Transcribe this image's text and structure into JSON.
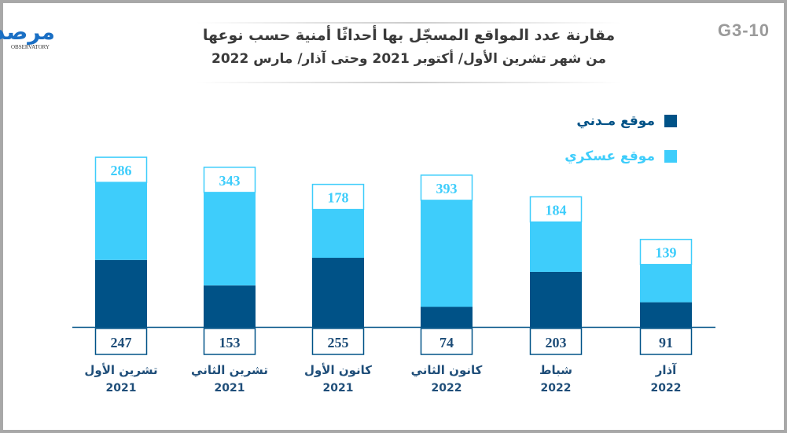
{
  "badge": "G3-10",
  "logo": {
    "text": "مرصد",
    "sub": "OBSERVATORY"
  },
  "title": {
    "line1": "مقارنة عدد المواقع المسجّل بها أحداثًا أمنية حسب نوعها",
    "line2": "من شهر تشرين الأول/ أكتوبر 2021 وحتى آذار/ مارس 2022"
  },
  "colors": {
    "civilian": "#005287",
    "military": "#3ecdfb",
    "text": "#1f4e79"
  },
  "chart_data": {
    "type": "bar",
    "stacked": true,
    "categories": [
      [
        "تشرين الأول",
        "2021"
      ],
      [
        "تشرين الثاني",
        "2021"
      ],
      [
        "كانون الأول",
        "2021"
      ],
      [
        "كانون الثاني",
        "2022"
      ],
      [
        "شباط",
        "2022"
      ],
      [
        "آذار",
        "2022"
      ]
    ],
    "series": [
      {
        "name": "موقع مـدني",
        "values": [
          247,
          153,
          255,
          74,
          203,
          91
        ]
      },
      {
        "name": "موقع عسكري",
        "values": [
          286,
          343,
          178,
          393,
          184,
          139
        ]
      }
    ],
    "legend": "top-right",
    "grid": false
  }
}
